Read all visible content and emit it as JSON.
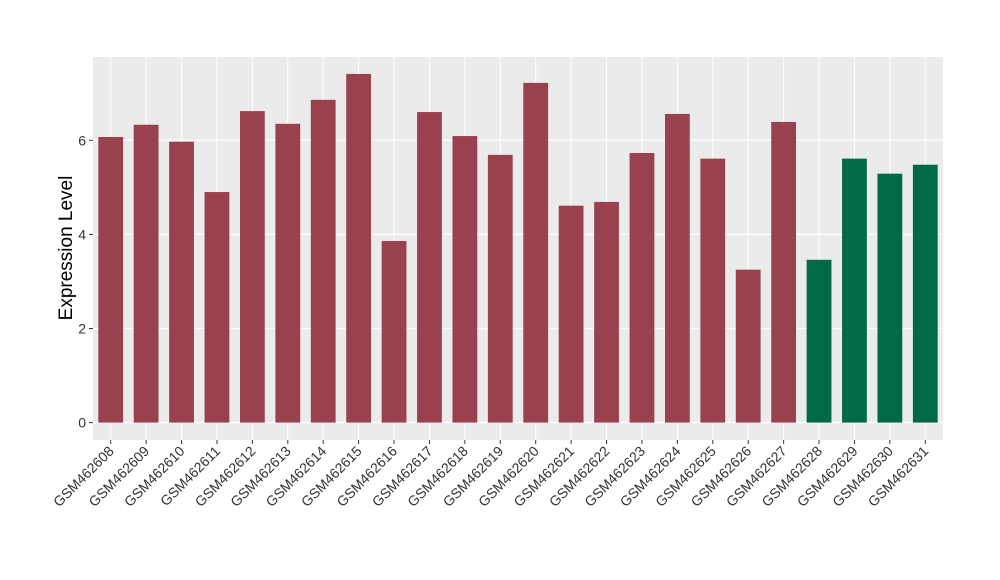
{
  "chart_data": {
    "type": "bar",
    "y_label": "Expression Level",
    "categories": [
      "GSM462608",
      "GSM462609",
      "GSM462610",
      "GSM462611",
      "GSM462612",
      "GSM462613",
      "GSM462614",
      "GSM462615",
      "GSM462616",
      "GSM462617",
      "GSM462618",
      "GSM462619",
      "GSM462620",
      "GSM462621",
      "GSM462622",
      "GSM462623",
      "GSM462624",
      "GSM462625",
      "GSM462626",
      "GSM462627",
      "GSM462628",
      "GSM462629",
      "GSM462630",
      "GSM462631"
    ],
    "values": [
      6.07,
      6.33,
      5.97,
      4.9,
      6.62,
      6.35,
      6.86,
      7.41,
      3.86,
      6.6,
      6.09,
      5.69,
      7.22,
      4.61,
      4.69,
      5.73,
      6.56,
      5.61,
      3.25,
      6.39,
      3.46,
      5.61,
      5.29,
      5.48
    ],
    "colors": [
      "#9a4150",
      "#9a4150",
      "#9a4150",
      "#9a4150",
      "#9a4150",
      "#9a4150",
      "#9a4150",
      "#9a4150",
      "#9a4150",
      "#9a4150",
      "#9a4150",
      "#9a4150",
      "#9a4150",
      "#9a4150",
      "#9a4150",
      "#9a4150",
      "#9a4150",
      "#9a4150",
      "#9a4150",
      "#9a4150",
      "#006a45",
      "#006a45",
      "#006a45",
      "#006a45"
    ],
    "ylim": [
      -0.37,
      7.77
    ],
    "yticks": [
      0,
      2,
      4,
      6
    ],
    "grid": true
  }
}
